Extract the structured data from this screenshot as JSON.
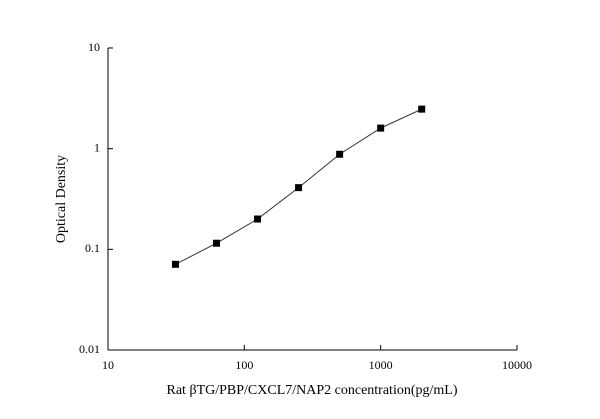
{
  "chart_data": {
    "type": "line",
    "xlabel": "Rat βTG/PBP/CXCL7/NAP2 concentration(pg/mL)",
    "ylabel": "Optical Density",
    "x": [
      31.25,
      62.5,
      125,
      250,
      500,
      1000,
      2000
    ],
    "series": [
      {
        "name": null,
        "color": "#000000",
        "values": [
          0.071,
          0.115,
          0.2,
          0.41,
          0.88,
          1.6,
          2.47
        ]
      }
    ],
    "line_color": "#333333",
    "marker": "square",
    "xscale": "log",
    "yscale": "log",
    "xlim": [
      10,
      10000
    ],
    "xticks": [
      10,
      100,
      1000,
      10000
    ],
    "ylim": [
      0.01,
      10
    ],
    "yticks": [
      0.01,
      0.1,
      1,
      10
    ]
  }
}
